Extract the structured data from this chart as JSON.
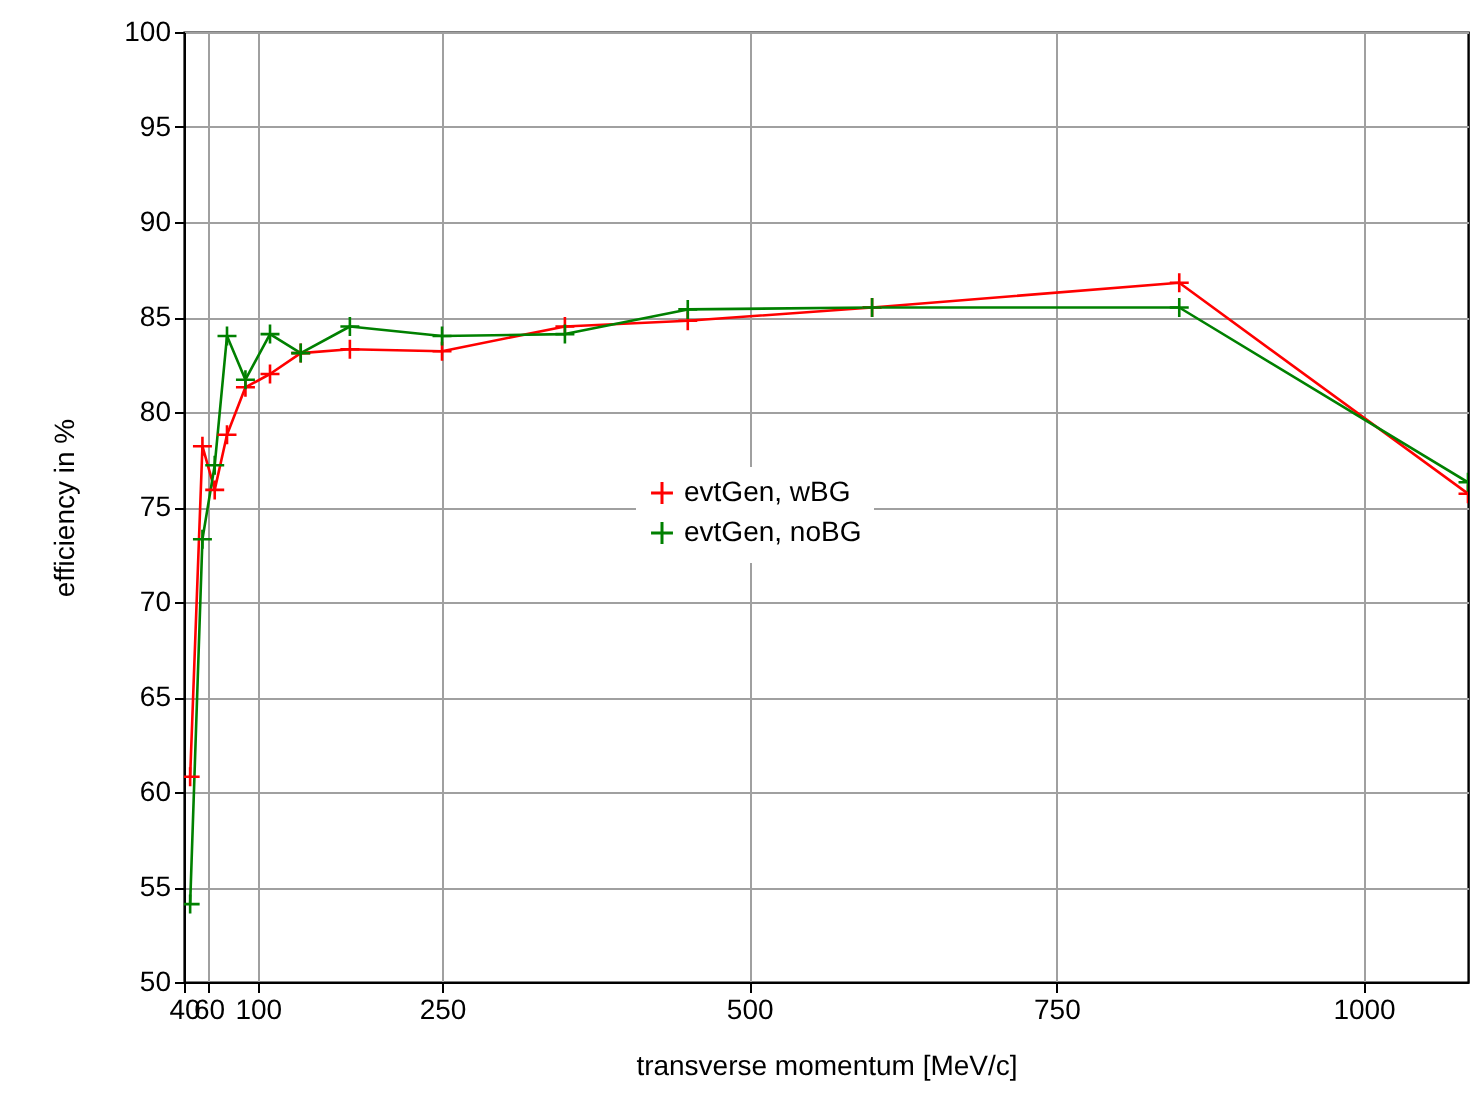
{
  "chart_data": {
    "type": "line",
    "xlabel": "transverse momentum [MeV/c]",
    "ylabel": "efficiency in %",
    "xlim": [
      40,
      1085
    ],
    "xticks": [
      40,
      60,
      100,
      250,
      500,
      750,
      1000
    ],
    "ylim": [
      50,
      100
    ],
    "yticks": [
      50,
      55,
      60,
      65,
      70,
      75,
      80,
      85,
      90,
      95,
      100
    ],
    "grid": true,
    "legend": "center",
    "marker": "cross",
    "x": [
      45,
      55,
      65,
      75,
      90,
      110,
      135,
      175,
      250,
      350,
      450,
      600,
      850,
      1085
    ],
    "series": [
      {
        "name": "evtGen, wBG",
        "color": "#ff0000",
        "values": [
          60.8,
          78.2,
          75.9,
          78.8,
          81.3,
          82.0,
          83.1,
          83.3,
          83.2,
          84.5,
          84.8,
          85.5,
          86.8,
          75.7
        ]
      },
      {
        "name": "evtGen, noBG",
        "color": "#008000",
        "values": [
          54.1,
          73.3,
          77.2,
          84.0,
          81.7,
          84.1,
          83.1,
          84.5,
          84.0,
          84.1,
          85.4,
          85.5,
          85.5,
          76.3
        ]
      }
    ]
  }
}
